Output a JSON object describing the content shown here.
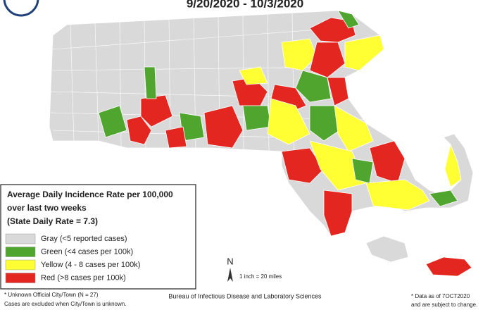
{
  "header": {
    "title": "9/20/2020 - 10/3/2020"
  },
  "legend": {
    "title_lines": [
      "Average Daily Incidence Rate per 100,000",
      "over last two weeks",
      "(State Daily Rate = 7.3)"
    ],
    "items": [
      {
        "label": "Gray (<5 reported cases)",
        "color": "#d9d9d9"
      },
      {
        "label": "Green (<4 cases per 100k)",
        "color": "#4fa52e"
      },
      {
        "label": "Yellow (4 - 8 cases per 100k)",
        "color": "#ffff33"
      },
      {
        "label": "Red (>8 cases per 100k)",
        "color": "#e3261f"
      }
    ]
  },
  "map": {
    "north": "N",
    "scale": "1 inch = 20 miles"
  },
  "footer": {
    "bureau": "Bureau of Infectious Disease and Laboratory Sciences",
    "left_lines": [
      "* Unknown Official City/Town (N = 27)",
      "Cases are excluded when City/Town is unknown."
    ],
    "right_lines": [
      "* Data as of 7OCT2020",
      "and are subject to change."
    ]
  }
}
